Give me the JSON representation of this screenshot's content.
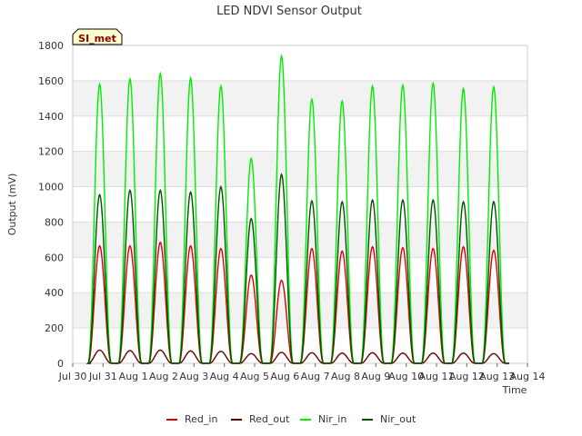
{
  "chart_data": {
    "type": "line",
    "title": "LED NDVI Sensor Output",
    "xlabel": "Time",
    "ylabel": "Output (mV)",
    "ylim": [
      0,
      1800
    ],
    "yticks": [
      0,
      200,
      400,
      600,
      800,
      1000,
      1200,
      1400,
      1600,
      1800
    ],
    "xlim_days": [
      0,
      15
    ],
    "xtick_labels": [
      "Jul 30",
      "Jul 31",
      "Aug 1",
      "Aug 2",
      "Aug 3",
      "Aug 4",
      "Aug 5",
      "Aug 6",
      "Aug 7",
      "Aug 8",
      "Aug 9",
      "Aug 10",
      "Aug 11",
      "Aug 12",
      "Aug 13",
      "Aug 14"
    ],
    "annotation": "SI_met",
    "grid": "horizontal bands",
    "legend_position": "bottom",
    "day_start_fraction": 0.5,
    "peak_days": [
      1,
      2,
      3,
      4,
      5,
      6,
      7,
      8,
      9,
      10,
      11,
      12,
      13,
      14
    ],
    "series": [
      {
        "name": "Red_in",
        "color": "#dd0000",
        "daily_peaks": [
          665,
          665,
          685,
          665,
          650,
          500,
          470,
          650,
          635,
          660,
          655,
          650,
          660,
          640
        ]
      },
      {
        "name": "Red_out",
        "color": "#660000",
        "daily_peaks": [
          75,
          72,
          75,
          70,
          68,
          55,
          62,
          60,
          58,
          60,
          58,
          58,
          58,
          55
        ]
      },
      {
        "name": "Nir_in",
        "color": "#00ee00",
        "daily_peaks": [
          1580,
          1610,
          1640,
          1615,
          1570,
          1160,
          1740,
          1495,
          1485,
          1570,
          1575,
          1585,
          1555,
          1565
        ]
      },
      {
        "name": "Nir_out",
        "color": "#005500",
        "daily_peaks": [
          955,
          980,
          980,
          970,
          1000,
          820,
          1070,
          920,
          915,
          925,
          925,
          925,
          915,
          915
        ]
      }
    ]
  }
}
